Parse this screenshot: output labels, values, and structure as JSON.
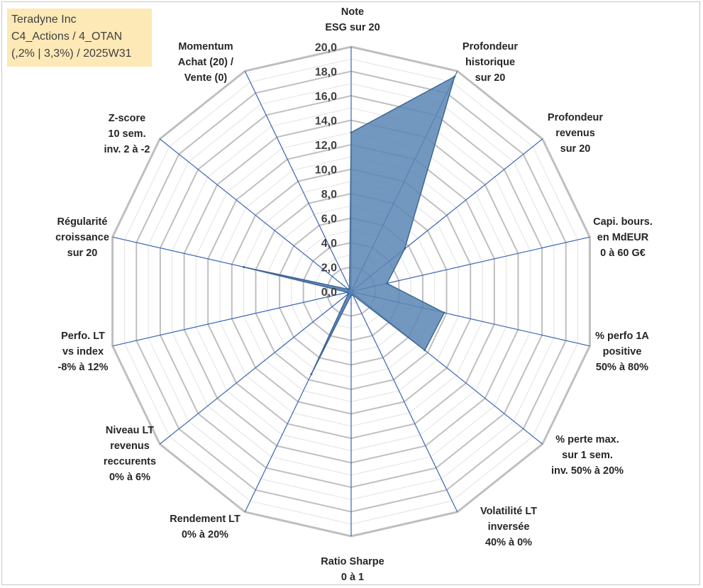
{
  "header": {
    "lines": [
      "Teradyne Inc",
      "C4_Actions / 4_OTAN",
      "(,2% | 3,3%) / 2025W31"
    ]
  },
  "colors": {
    "fill": "#5b86b5",
    "edge": "#3f6894",
    "spoke": "#3a64b4",
    "ring_major": "#bfbfbf",
    "ring_minor": "#e2e2e2"
  },
  "chart_data": {
    "type": "radar",
    "rmin": 0,
    "rmax": 20,
    "tick_step": 2,
    "tick_labels": [
      "0,0",
      "2,0",
      "4,0",
      "6,0",
      "8,0",
      "10,0",
      "12,0",
      "14,0",
      "16,0",
      "18,0",
      "20,0"
    ],
    "axes": [
      {
        "label": [
          "Note",
          "ESG sur 20"
        ],
        "value": 13.0
      },
      {
        "label": [
          "Profondeur",
          "historique",
          "sur 20"
        ],
        "value": 19.5
      },
      {
        "label": [
          "Profondeur",
          "revenus",
          "sur 20"
        ],
        "value": 5.6
      },
      {
        "label": [
          "Capi. bours.",
          "en MdEUR",
          "0 à 60 G€"
        ],
        "value": 3.0
      },
      {
        "label": [
          "% perfo 1A",
          "positive",
          "50% à 80%"
        ],
        "value": 7.8
      },
      {
        "label": [
          "% perte max.",
          "sur 1 sem.",
          "inv. 50% à 20%"
        ],
        "value": 7.7
      },
      {
        "label": [
          "Volatilité LT",
          "inversée",
          "40% à 0%"
        ],
        "value": 0.3
      },
      {
        "label": [
          "Ratio Sharpe",
          "0 à 1"
        ],
        "value": 0.3
      },
      {
        "label": [
          "Rendement LT",
          "0% à 20%"
        ],
        "value": 7.5
      },
      {
        "label": [
          "Niveau LT",
          "revenus",
          "reccurents",
          "0% à 6%"
        ],
        "value": 0.3
      },
      {
        "label": [
          "Perfo. LT",
          "vs index",
          "-8% à 12%"
        ],
        "value": 0.3
      },
      {
        "label": [
          "Régularité",
          "croissance",
          "sur 20"
        ],
        "value": 9.0
      },
      {
        "label": [
          "Z-score",
          "10 sem.",
          "inv. 2 à -2"
        ],
        "value": 0.3
      },
      {
        "label": [
          "Momentum",
          "Achat (20) /",
          "Vente (0)"
        ],
        "value": 0.3
      }
    ]
  }
}
